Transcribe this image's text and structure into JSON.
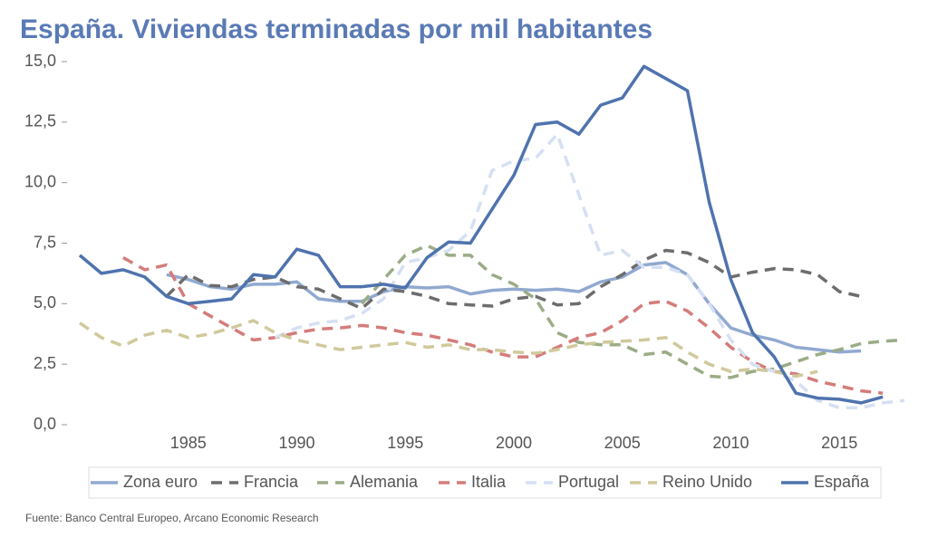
{
  "chart_data": {
    "type": "line",
    "title": "España. Viviendas terminadas por mil habitantes",
    "source": "Fuente: Banco Central Europeo, Arcano Economic Research",
    "x": [
      1980,
      1981,
      1982,
      1983,
      1984,
      1985,
      1986,
      1987,
      1988,
      1989,
      1990,
      1991,
      1992,
      1993,
      1994,
      1995,
      1996,
      1997,
      1998,
      1999,
      2000,
      2001,
      2002,
      2003,
      2004,
      2005,
      2006,
      2007,
      2008,
      2009,
      2010,
      2011,
      2012,
      2013,
      2014,
      2015,
      2016,
      2017,
      2018
    ],
    "xlim": [
      1980,
      2018.5
    ],
    "xticks": [
      1985,
      1990,
      1995,
      2000,
      2005,
      2010,
      2015
    ],
    "ylim": [
      0,
      15
    ],
    "yticks": [
      {
        "value": 0,
        "label": "0,0"
      },
      {
        "value": 2.5,
        "label": "2,5"
      },
      {
        "value": 5,
        "label": "5,0"
      },
      {
        "value": 7.5,
        "label": "7,5"
      },
      {
        "value": 10,
        "label": "10,0"
      },
      {
        "value": 12.5,
        "label": "12,5"
      },
      {
        "value": 15,
        "label": "15,0"
      }
    ],
    "grid": false,
    "legend": "bottom",
    "series": [
      {
        "name": "Zona euro",
        "color": "#91a9d0",
        "dashed": false,
        "values": [
          null,
          null,
          null,
          null,
          6.2,
          6.0,
          5.7,
          5.6,
          5.8,
          5.8,
          5.9,
          5.2,
          5.1,
          5.1,
          5.5,
          5.7,
          5.65,
          5.7,
          5.4,
          5.55,
          5.6,
          5.55,
          5.6,
          5.5,
          5.9,
          6.1,
          6.6,
          6.7,
          6.2,
          5.0,
          4.0,
          3.7,
          3.5,
          3.2,
          3.1,
          3.0,
          3.05,
          null,
          null
        ]
      },
      {
        "name": "Francia",
        "color": "#6d6d6d",
        "dashed": true,
        "values": [
          null,
          null,
          null,
          null,
          5.3,
          6.2,
          5.75,
          5.7,
          6.0,
          6.1,
          5.7,
          5.6,
          5.2,
          4.8,
          5.6,
          5.5,
          5.3,
          5.0,
          4.95,
          4.9,
          5.2,
          5.3,
          4.95,
          5.0,
          5.7,
          6.2,
          6.8,
          7.2,
          7.1,
          6.7,
          6.1,
          6.3,
          6.45,
          6.4,
          6.2,
          5.5,
          5.3,
          null,
          null
        ]
      },
      {
        "name": "Alemania",
        "color": "#9bac86",
        "dashed": true,
        "values": [
          null,
          null,
          null,
          null,
          null,
          null,
          null,
          null,
          null,
          null,
          null,
          null,
          null,
          5.0,
          6.0,
          7.0,
          7.4,
          7.0,
          7.0,
          6.2,
          5.8,
          5.2,
          3.8,
          3.4,
          3.3,
          3.3,
          2.9,
          3.0,
          2.5,
          2.0,
          1.95,
          2.2,
          2.3,
          2.6,
          2.9,
          3.1,
          3.35,
          3.45,
          3.5
        ]
      },
      {
        "name": "Italia",
        "color": "#d47c7a",
        "dashed": true,
        "values": [
          null,
          null,
          6.9,
          6.4,
          6.6,
          5.0,
          4.5,
          4.0,
          3.5,
          3.6,
          3.8,
          3.95,
          4.0,
          4.1,
          4.0,
          3.8,
          3.7,
          3.5,
          3.3,
          3.0,
          2.8,
          2.8,
          3.2,
          3.6,
          3.8,
          4.3,
          5.0,
          5.1,
          4.7,
          4.0,
          3.2,
          2.6,
          2.2,
          2.1,
          1.8,
          1.6,
          1.4,
          1.3,
          null
        ]
      },
      {
        "name": "Portugal",
        "color": "#d6e0f3",
        "dashed": true,
        "values": [
          null,
          null,
          null,
          null,
          null,
          null,
          null,
          null,
          null,
          3.6,
          4.0,
          4.2,
          4.3,
          4.6,
          5.2,
          6.7,
          6.9,
          7.2,
          8.0,
          10.5,
          10.9,
          11.0,
          12.0,
          9.5,
          7.0,
          7.2,
          6.5,
          6.5,
          6.2,
          5.0,
          3.5,
          2.5,
          2.2,
          1.8,
          1.0,
          0.7,
          0.7,
          0.9,
          1.0
        ]
      },
      {
        "name": "Reino Unido",
        "color": "#d0c99c",
        "dashed": true,
        "values": [
          4.2,
          3.6,
          3.25,
          3.7,
          3.9,
          3.6,
          3.75,
          4.0,
          4.3,
          3.8,
          3.5,
          3.3,
          3.1,
          3.2,
          3.3,
          3.4,
          3.2,
          3.3,
          3.1,
          3.1,
          3.0,
          2.95,
          3.1,
          3.3,
          3.4,
          3.45,
          3.5,
          3.6,
          3.0,
          2.5,
          2.2,
          2.3,
          2.2,
          2.0,
          2.2,
          null,
          null,
          null,
          null
        ]
      },
      {
        "name": "España",
        "color": "#4f73ae",
        "dashed": false,
        "values": [
          7.0,
          6.25,
          6.4,
          6.1,
          5.3,
          5.0,
          5.1,
          5.2,
          6.2,
          6.1,
          7.25,
          7.0,
          5.7,
          5.7,
          5.8,
          5.65,
          6.9,
          7.55,
          7.5,
          8.9,
          10.3,
          12.4,
          12.5,
          12.0,
          13.2,
          13.5,
          14.8,
          14.3,
          13.8,
          9.2,
          6.0,
          3.8,
          2.8,
          1.3,
          1.1,
          1.05,
          0.9,
          1.15,
          null
        ]
      }
    ]
  }
}
